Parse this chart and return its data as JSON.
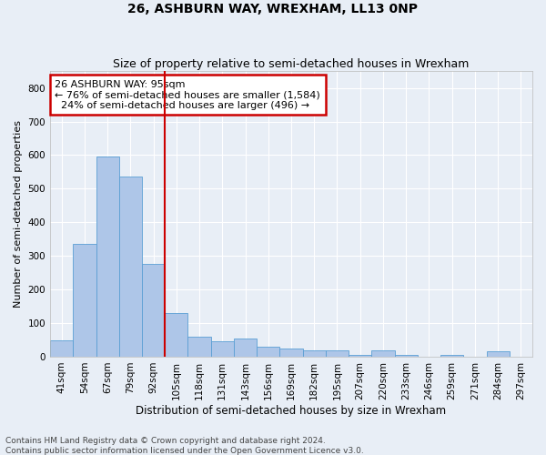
{
  "title": "26, ASHBURN WAY, WREXHAM, LL13 0NP",
  "subtitle": "Size of property relative to semi-detached houses in Wrexham",
  "xlabel": "Distribution of semi-detached houses by size in Wrexham",
  "ylabel": "Number of semi-detached properties",
  "categories": [
    "41sqm",
    "54sqm",
    "67sqm",
    "79sqm",
    "92sqm",
    "105sqm",
    "118sqm",
    "131sqm",
    "143sqm",
    "156sqm",
    "169sqm",
    "182sqm",
    "195sqm",
    "207sqm",
    "220sqm",
    "233sqm",
    "246sqm",
    "259sqm",
    "271sqm",
    "284sqm",
    "297sqm"
  ],
  "values": [
    50,
    335,
    595,
    535,
    275,
    130,
    60,
    45,
    55,
    30,
    25,
    20,
    20,
    5,
    20,
    5,
    0,
    5,
    0,
    15,
    0
  ],
  "bar_color": "#aec6e8",
  "bar_edge_color": "#5a9fd4",
  "property_label": "26 ASHBURN WAY: 95sqm",
  "pct_smaller": 76,
  "pct_smaller_n": "1,584",
  "pct_larger": 24,
  "pct_larger_n": "496",
  "annotation_box_color": "#ffffff",
  "annotation_border_color": "#cc0000",
  "vline_color": "#cc0000",
  "ylim": [
    0,
    850
  ],
  "yticks": [
    0,
    100,
    200,
    300,
    400,
    500,
    600,
    700,
    800
  ],
  "footer_text": "Contains HM Land Registry data © Crown copyright and database right 2024.\nContains public sector information licensed under the Open Government Licence v3.0.",
  "background_color": "#e8eef6",
  "plot_bg_color": "#e8eef6",
  "grid_color": "#ffffff",
  "title_fontsize": 10,
  "subtitle_fontsize": 9,
  "xlabel_fontsize": 8.5,
  "ylabel_fontsize": 8,
  "tick_fontsize": 7.5,
  "footer_fontsize": 6.5,
  "ann_fontsize": 8
}
